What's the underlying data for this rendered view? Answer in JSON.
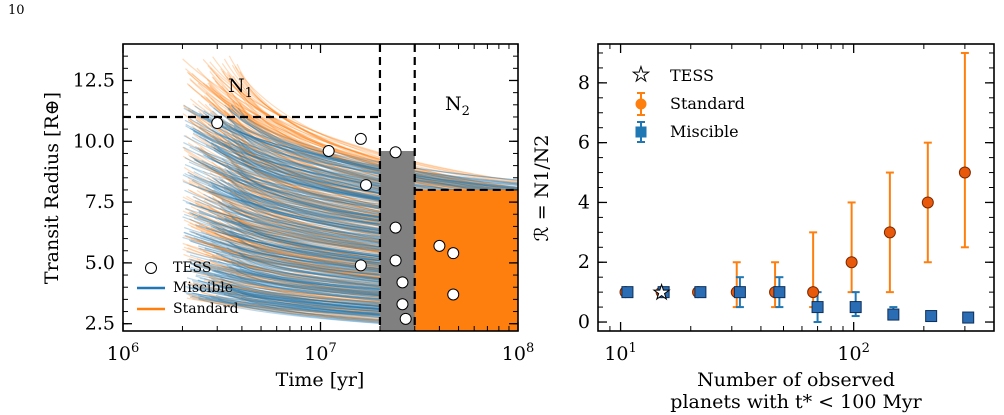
{
  "page_number": "10",
  "chart_data": [
    {
      "type": "line",
      "xscale": "log",
      "xlim": [
        1000000,
        100000000
      ],
      "ylim": [
        2.2,
        14
      ],
      "xlabel": "Time [yr]",
      "ylabel": "Transit Radius [R⊕]",
      "xticks": [
        {
          "value": 1000000,
          "base": "10",
          "exp": "6"
        },
        {
          "value": 10000000,
          "base": "10",
          "exp": "7"
        },
        {
          "value": 100000000,
          "base": "10",
          "exp": "8"
        }
      ],
      "yticks": [
        "2.5",
        "5.0",
        "7.5",
        "10.0",
        "12.5"
      ],
      "region_labels": {
        "n1": {
          "base": "N",
          "sub": "1"
        },
        "n2": {
          "base": "N",
          "sub": "2"
        }
      },
      "legend": {
        "position": "lower-left",
        "entries": [
          "TESS",
          "Miscible",
          "Standard"
        ]
      },
      "colors": {
        "standard": "#ff7f0e",
        "miscible": "#1f77b4",
        "gap": "#808080"
      },
      "regions": {
        "t_split_1": 20000000,
        "t_split_2": 30000000,
        "n1_radius_min": 11,
        "n2_radius_max": 8
      },
      "series": [
        {
          "name": "TESS",
          "kind": "scatter",
          "x": [
            3000000,
            11000000,
            16000000,
            17000000,
            16000000,
            24000000,
            24000000,
            24000000,
            26000000,
            26000000,
            27000000,
            40000000,
            47000000,
            47000000
          ],
          "y": [
            10.75,
            9.6,
            10.1,
            8.2,
            4.9,
            9.55,
            6.45,
            5.1,
            4.2,
            3.3,
            2.7,
            5.7,
            5.4,
            3.7
          ]
        },
        {
          "name": "Miscible",
          "kind": "track-ensemble",
          "start_time_range": [
            2000000,
            4000000
          ],
          "start_radius_range": [
            4,
            12
          ],
          "end_radius_at_1e8": [
            2.4,
            8.3
          ]
        },
        {
          "name": "Standard",
          "kind": "track-ensemble",
          "start_time_range": [
            2000000,
            4000000
          ],
          "start_radius_range": [
            4,
            13.5
          ],
          "end_radius_at_1e8": [
            2.4,
            8.3
          ]
        }
      ]
    },
    {
      "type": "scatter",
      "xscale": "log",
      "xlim": [
        8,
        400
      ],
      "ylim": [
        -0.3,
        9.3
      ],
      "xlabel": "Number of observed",
      "xlabel2": "planets with t* < 100 Myr",
      "ylabel": "ℛ = N1/N2",
      "xticks": [
        {
          "value": 10,
          "base": "10",
          "exp": "1"
        },
        {
          "value": 100,
          "base": "10",
          "exp": "2"
        }
      ],
      "yticks": [
        "0",
        "2",
        "4",
        "6",
        "8"
      ],
      "legend": {
        "position": "top-left",
        "entries": [
          "TESS",
          "Standard",
          "Miscible"
        ]
      },
      "series": [
        {
          "name": "TESS",
          "marker": "star",
          "x": [
            15
          ],
          "y": [
            1
          ],
          "yerr_low": [
            0
          ],
          "yerr_high": [
            0
          ]
        },
        {
          "name": "Standard",
          "marker": "circle",
          "color": "#ff7f0e",
          "x": [
            10.5,
            15,
            21.5,
            31.5,
            46,
            67,
            98,
            143,
            208,
            300
          ],
          "y": [
            1,
            1,
            1,
            1,
            1,
            1,
            2,
            3,
            4,
            5
          ],
          "yerr_low": [
            0,
            0,
            0,
            0.5,
            0.5,
            0.5,
            1,
            2,
            2,
            2.5
          ],
          "yerr_high": [
            0,
            0,
            0,
            1,
            1,
            2,
            2,
            2,
            2,
            4
          ]
        },
        {
          "name": "Miscible",
          "marker": "square",
          "color": "#1f77b4",
          "x": [
            10.7,
            15.3,
            22,
            32.5,
            48,
            70,
            102,
            148,
            215,
            310
          ],
          "y": [
            1,
            1,
            1,
            1,
            1,
            0.5,
            0.5,
            0.25,
            0.2,
            0.15
          ],
          "yerr_low": [
            0,
            0,
            0,
            0.5,
            0.5,
            0.5,
            0.3,
            0.15,
            0.1,
            0.1
          ],
          "yerr_high": [
            0,
            0,
            0,
            0.5,
            0.5,
            0.5,
            0.5,
            0.25,
            0.1,
            0.1
          ]
        }
      ]
    }
  ]
}
